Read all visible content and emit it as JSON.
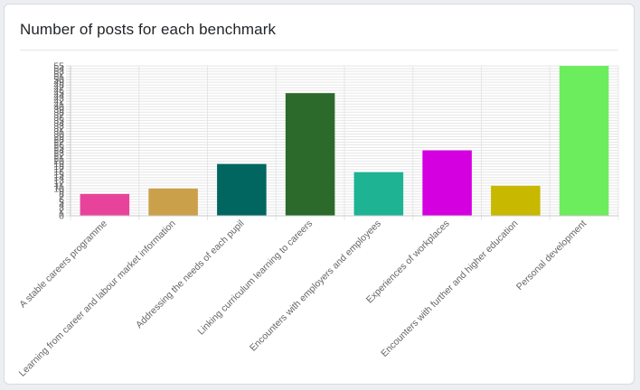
{
  "card": {
    "title": "Number of posts for each benchmark"
  },
  "chart_data": {
    "type": "bar",
    "title": "",
    "xlabel": "",
    "ylabel": "",
    "categories": [
      "A stable careers programme",
      "Learning from career and labour market information",
      "Addressing the needs of each pupil",
      "Linking curriculum learning to careers",
      "Encounters with employers and employees",
      "Experiences of workplaces",
      "Encounters with further and higher education",
      "Personal development"
    ],
    "values": [
      8,
      10,
      19,
      45,
      16,
      24,
      11,
      55
    ],
    "colors": [
      "#e8439a",
      "#cba04a",
      "#00665f",
      "#2b6a2b",
      "#1db393",
      "#d400e0",
      "#c8b800",
      "#6ced5e"
    ],
    "ylim": [
      0,
      55
    ],
    "yticks": [
      0,
      1,
      2,
      3,
      4,
      5,
      6,
      7,
      8,
      9,
      10,
      11,
      12,
      13,
      14,
      15,
      16,
      17,
      18,
      19,
      20,
      21,
      22,
      23,
      24,
      25,
      26,
      27,
      28,
      29,
      30,
      31,
      32,
      33,
      34,
      35,
      36,
      37,
      38,
      39,
      40,
      41,
      42,
      43,
      44,
      45,
      46,
      47,
      48,
      49,
      50,
      51,
      52,
      53,
      54,
      55
    ],
    "grid": true,
    "legend": "none"
  }
}
